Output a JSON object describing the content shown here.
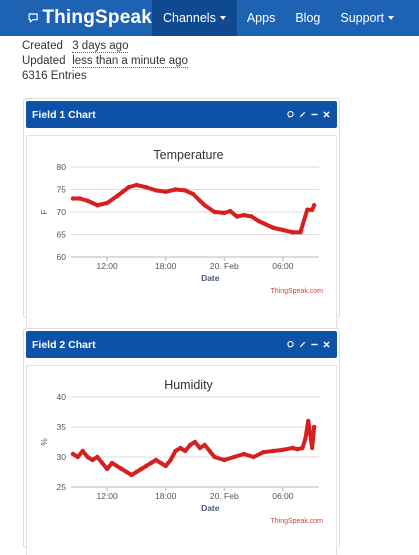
{
  "nav": {
    "brand": "ThingSpeak",
    "items": [
      {
        "label": "Channels",
        "active": true,
        "caret": true
      },
      {
        "label": "Apps",
        "active": false,
        "caret": false
      },
      {
        "label": "Blog",
        "active": false,
        "caret": false
      },
      {
        "label": "Support",
        "active": false,
        "caret": true
      }
    ]
  },
  "channel": {
    "created_label": "Created",
    "created_value": "3 days ago",
    "updated_label": "Updated",
    "updated_value": "less than a minute ago",
    "entries": "6316 Entries"
  },
  "colors": {
    "nav": "#1e63b3",
    "panel_header": "#0e52a7",
    "series": "#d62020"
  },
  "icons": [
    "comment-icon",
    "pencil-icon",
    "minus-icon",
    "close-icon"
  ],
  "panels": [
    {
      "title": "Field 1 Chart"
    },
    {
      "title": "Field 2 Chart"
    }
  ],
  "chart_data": [
    {
      "type": "line",
      "title": "Temperature",
      "xlabel": "Date",
      "ylabel": "F",
      "ylim": [
        60,
        80
      ],
      "yticks": [
        60,
        65,
        70,
        75,
        80
      ],
      "xlim": [
        8.3,
        33.7
      ],
      "xtick_positions": [
        12,
        18,
        24,
        30
      ],
      "xtick_labels": [
        "12:00",
        "18:00",
        "20. Feb",
        "06:00"
      ],
      "credit": "ThingSpeak.com",
      "grid": "horizontal",
      "series": [
        {
          "x": [
            8.5,
            9.2,
            10.0,
            11.0,
            12.0,
            13.0,
            13.6,
            14.2,
            15.0,
            16.0,
            17.0,
            18.0,
            19.0,
            20.0,
            20.8,
            21.5,
            22.0,
            23.0,
            24.0,
            24.6,
            25.3,
            26.0,
            26.8,
            27.5,
            28.0,
            29.0,
            30.0,
            31.0,
            31.8,
            32.5,
            33.0,
            33.2
          ],
          "y": [
            73,
            73,
            72.5,
            71.5,
            72,
            73.5,
            74.5,
            75.5,
            76,
            75.5,
            74.8,
            74.5,
            75,
            74.8,
            74,
            72.5,
            71.5,
            70,
            69.8,
            70.2,
            69,
            69.3,
            69,
            68,
            67.5,
            66.5,
            66,
            65.5,
            65.5,
            70.5,
            70.5,
            71.5
          ]
        }
      ]
    },
    {
      "type": "line",
      "title": "Humidity",
      "xlabel": "Date",
      "ylabel": "%",
      "ylim": [
        25,
        40
      ],
      "yticks": [
        25,
        30,
        35,
        40
      ],
      "xlim": [
        8.3,
        33.7
      ],
      "xtick_positions": [
        12,
        18,
        24,
        30
      ],
      "xtick_labels": [
        "12:00",
        "18:00",
        "20. Feb",
        "06:00"
      ],
      "credit": "ThingSpeak.com",
      "grid": "horizontal",
      "series": [
        {
          "x": [
            8.5,
            9.0,
            9.5,
            10.0,
            10.5,
            11.0,
            11.5,
            12.0,
            12.5,
            13.0,
            13.5,
            14.0,
            14.5,
            15.0,
            15.5,
            16.0,
            16.5,
            17.0,
            17.5,
            18.0,
            18.5,
            19.0,
            19.5,
            20.0,
            20.5,
            21.0,
            21.5,
            22.0,
            22.5,
            23.0,
            24.0,
            25.0,
            26.0,
            27.0,
            28.0,
            29.0,
            30.0,
            31.0,
            31.5,
            32.0,
            32.3,
            32.6,
            33.0,
            33.2
          ],
          "y": [
            30.5,
            30,
            31,
            30,
            29.5,
            30,
            29,
            28,
            29,
            28.5,
            28,
            27.5,
            27,
            27.5,
            28,
            28.5,
            29,
            29.5,
            29,
            28.5,
            29.5,
            31,
            31.5,
            31,
            32,
            32.5,
            31.5,
            32,
            31,
            30,
            29.5,
            30,
            30.5,
            30,
            30.8,
            31,
            31.2,
            31.5,
            31.3,
            31.5,
            33,
            36,
            31.5,
            35
          ]
        }
      ]
    }
  ]
}
